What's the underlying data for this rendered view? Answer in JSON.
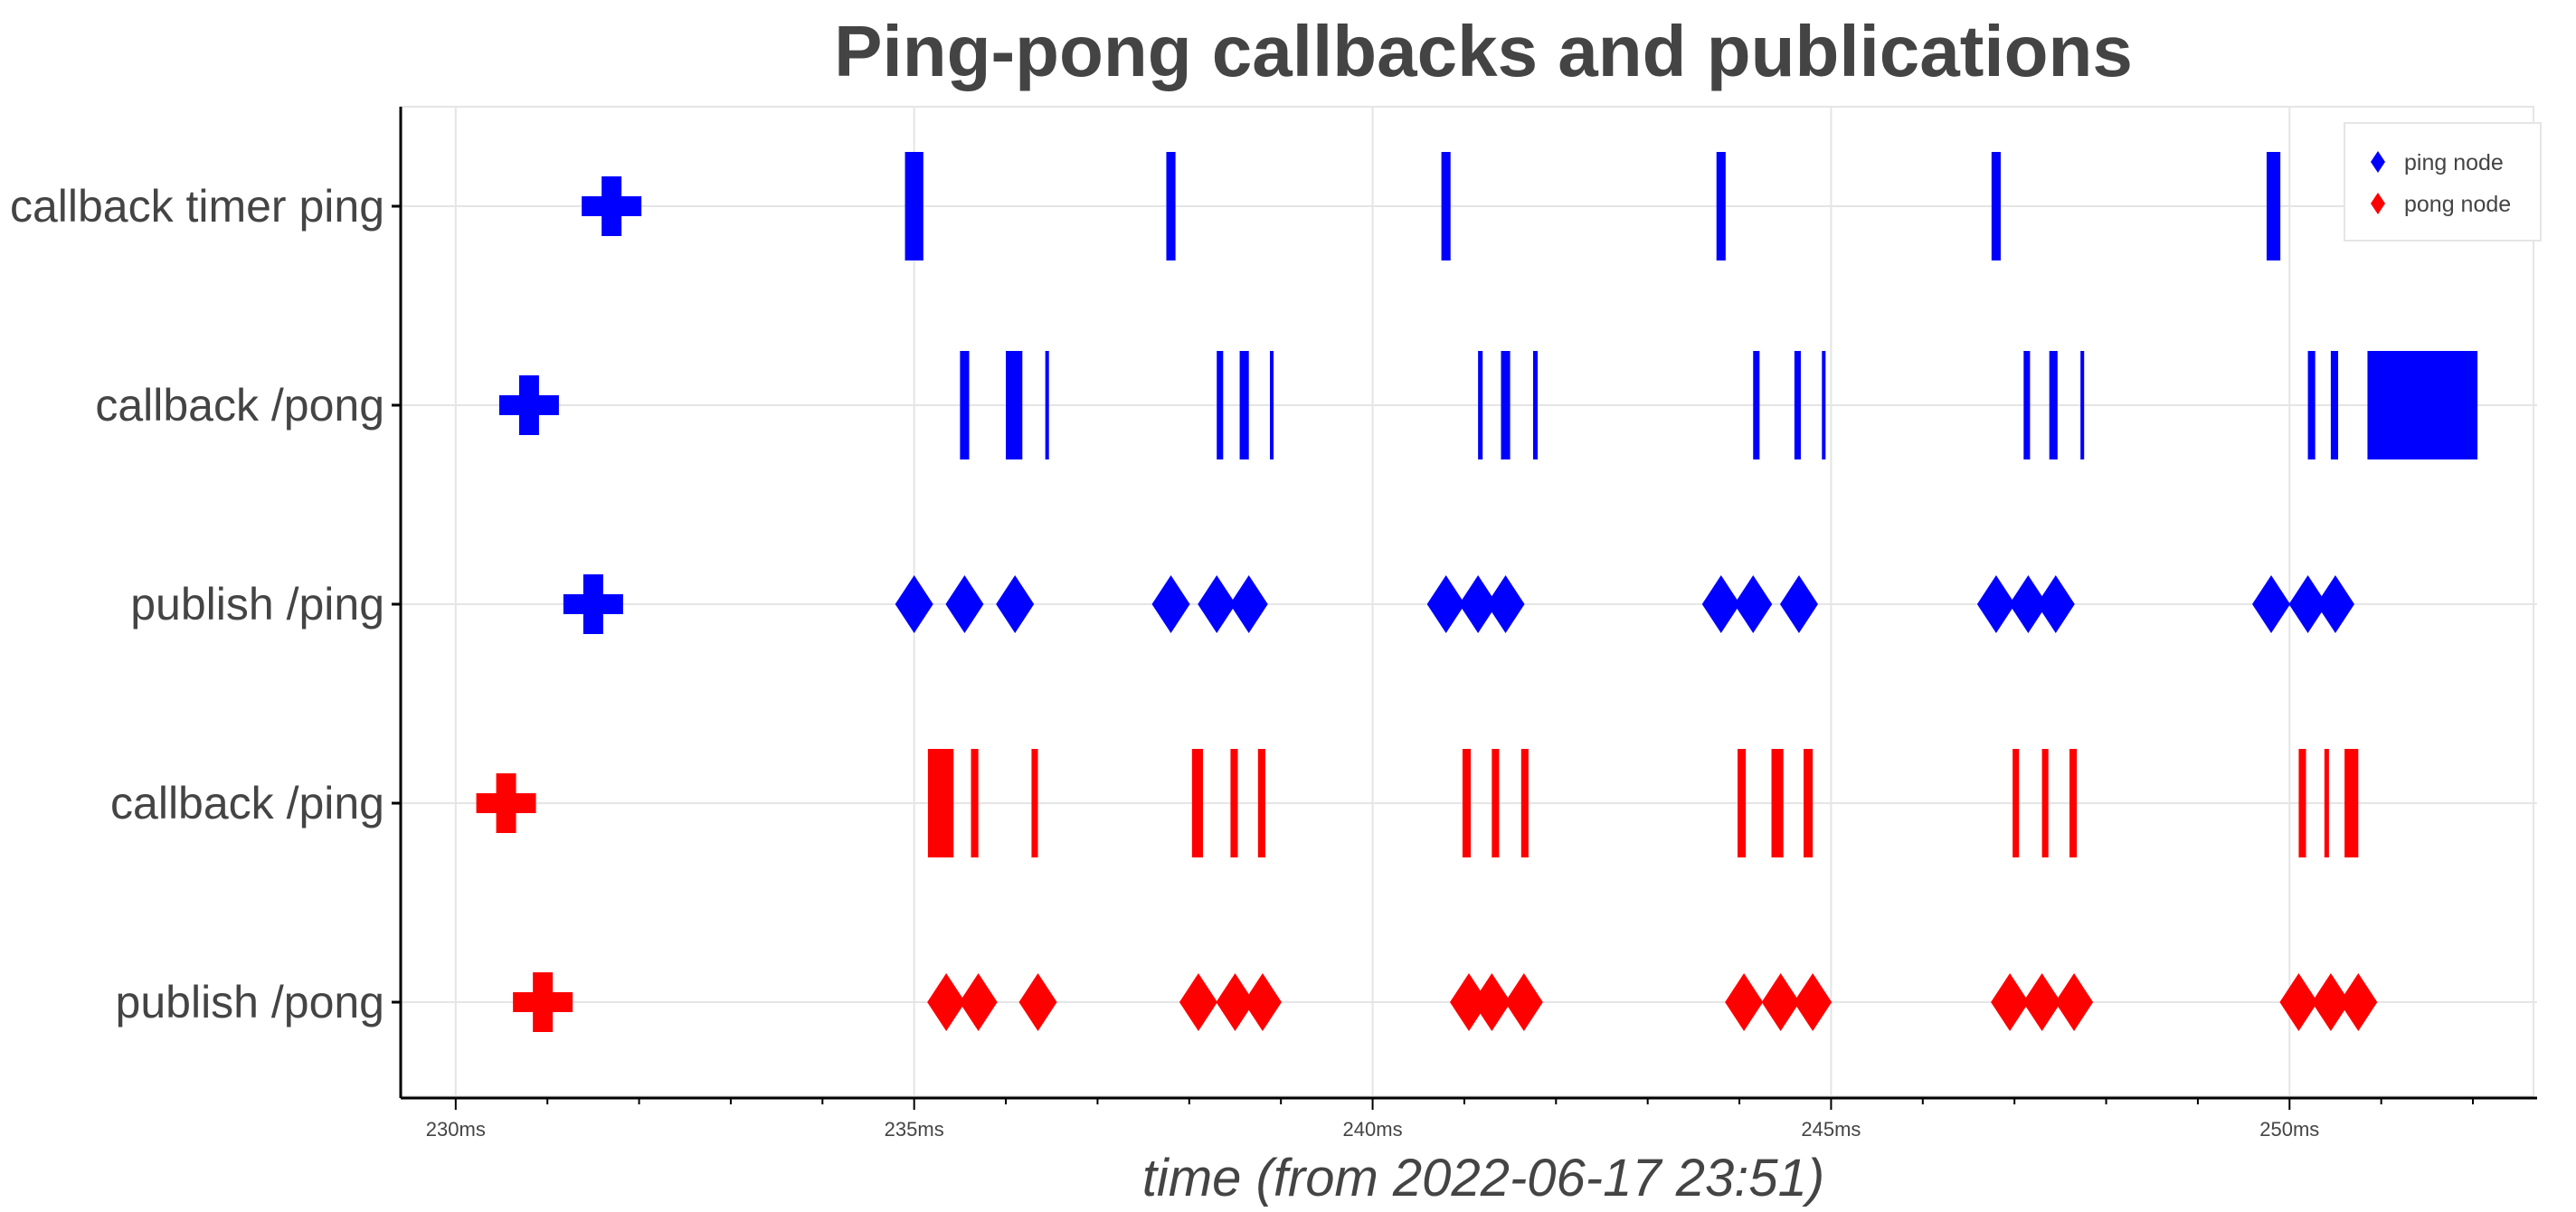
{
  "chart_data": {
    "type": "scatter",
    "title": "Ping-pong callbacks and publications",
    "xlabel": "time (from 2022-06-17 23:51)",
    "ylabel": "",
    "x_unit": "ms",
    "xlim": [
      229.4,
      252.7
    ],
    "x_ticks": [
      {
        "value": 230,
        "label": "230ms"
      },
      {
        "value": 235,
        "label": "235ms"
      },
      {
        "value": 240,
        "label": "240ms"
      },
      {
        "value": 245,
        "label": "245ms"
      },
      {
        "value": 250,
        "label": "250ms"
      }
    ],
    "categories": [
      "callback timer ping",
      "callback /pong",
      "publish /ping",
      "callback /ping",
      "publish /pong"
    ],
    "grid": true,
    "legend_position": "top-right",
    "colors": {
      "ping": "#0000ff",
      "pong": "#ff0000"
    },
    "series": [
      {
        "name": "ping node",
        "color": "#0000ff",
        "init_markers": [
          {
            "category": "callback timer ping",
            "x": 231.7
          },
          {
            "category": "callback /pong",
            "x": 230.8
          },
          {
            "category": "publish /ping",
            "x": 231.5
          }
        ],
        "callbacks": [
          {
            "category": "callback timer ping",
            "intervals": [
              [
                234.9,
                235.1
              ],
              [
                237.75,
                237.85
              ],
              [
                240.75,
                240.85
              ],
              [
                243.75,
                243.85
              ],
              [
                246.75,
                246.85
              ],
              [
                249.75,
                249.9
              ]
            ]
          },
          {
            "category": "callback /pong",
            "intervals": [
              [
                235.5,
                235.6
              ],
              [
                236.0,
                236.18
              ],
              [
                236.43,
                236.47
              ],
              [
                238.3,
                238.37
              ],
              [
                238.55,
                238.65
              ],
              [
                238.88,
                238.92
              ],
              [
                241.15,
                241.2
              ],
              [
                241.4,
                241.5
              ],
              [
                241.75,
                241.8
              ],
              [
                244.15,
                244.22
              ],
              [
                244.6,
                244.67
              ],
              [
                244.9,
                244.94
              ],
              [
                247.1,
                247.17
              ],
              [
                247.38,
                247.47
              ],
              [
                247.72,
                247.76
              ],
              [
                250.2,
                250.28
              ],
              [
                250.45,
                250.53
              ],
              [
                250.85,
                252.05
              ]
            ]
          }
        ],
        "publications": [
          {
            "category": "publish /ping",
            "x": [
              235.0,
              235.55,
              236.1,
              237.8,
              238.3,
              238.65,
              240.8,
              241.15,
              241.45,
              243.8,
              244.15,
              244.65,
              246.8,
              247.15,
              247.45,
              249.8,
              250.2,
              250.5
            ]
          }
        ]
      },
      {
        "name": "pong node",
        "color": "#ff0000",
        "init_markers": [
          {
            "category": "callback /ping",
            "x": 230.55
          },
          {
            "category": "publish /pong",
            "x": 230.95
          }
        ],
        "callbacks": [
          {
            "category": "callback /ping",
            "intervals": [
              [
                235.15,
                235.43
              ],
              [
                235.62,
                235.7
              ],
              [
                236.28,
                236.35
              ],
              [
                238.03,
                238.15
              ],
              [
                238.45,
                238.53
              ],
              [
                238.75,
                238.83
              ],
              [
                240.98,
                241.07
              ],
              [
                241.3,
                241.38
              ],
              [
                241.62,
                241.7
              ],
              [
                243.98,
                244.07
              ],
              [
                244.35,
                244.48
              ],
              [
                244.7,
                244.8
              ],
              [
                246.98,
                247.05
              ],
              [
                247.3,
                247.37
              ],
              [
                247.6,
                247.68
              ],
              [
                250.1,
                250.18
              ],
              [
                250.38,
                250.43
              ],
              [
                250.6,
                250.75
              ]
            ]
          }
        ],
        "publications": [
          {
            "category": "publish /pong",
            "x": [
              235.35,
              235.7,
              236.35,
              238.1,
              238.5,
              238.8,
              241.05,
              241.3,
              241.65,
              244.05,
              244.45,
              244.8,
              246.95,
              247.3,
              247.65,
              250.1,
              250.45,
              250.75
            ]
          }
        ]
      }
    ]
  },
  "legend": {
    "items": [
      {
        "label": "ping node",
        "color": "#0000ff",
        "marker": "diamond-icon"
      },
      {
        "label": "pong node",
        "color": "#ff0000",
        "marker": "diamond-icon"
      }
    ]
  }
}
